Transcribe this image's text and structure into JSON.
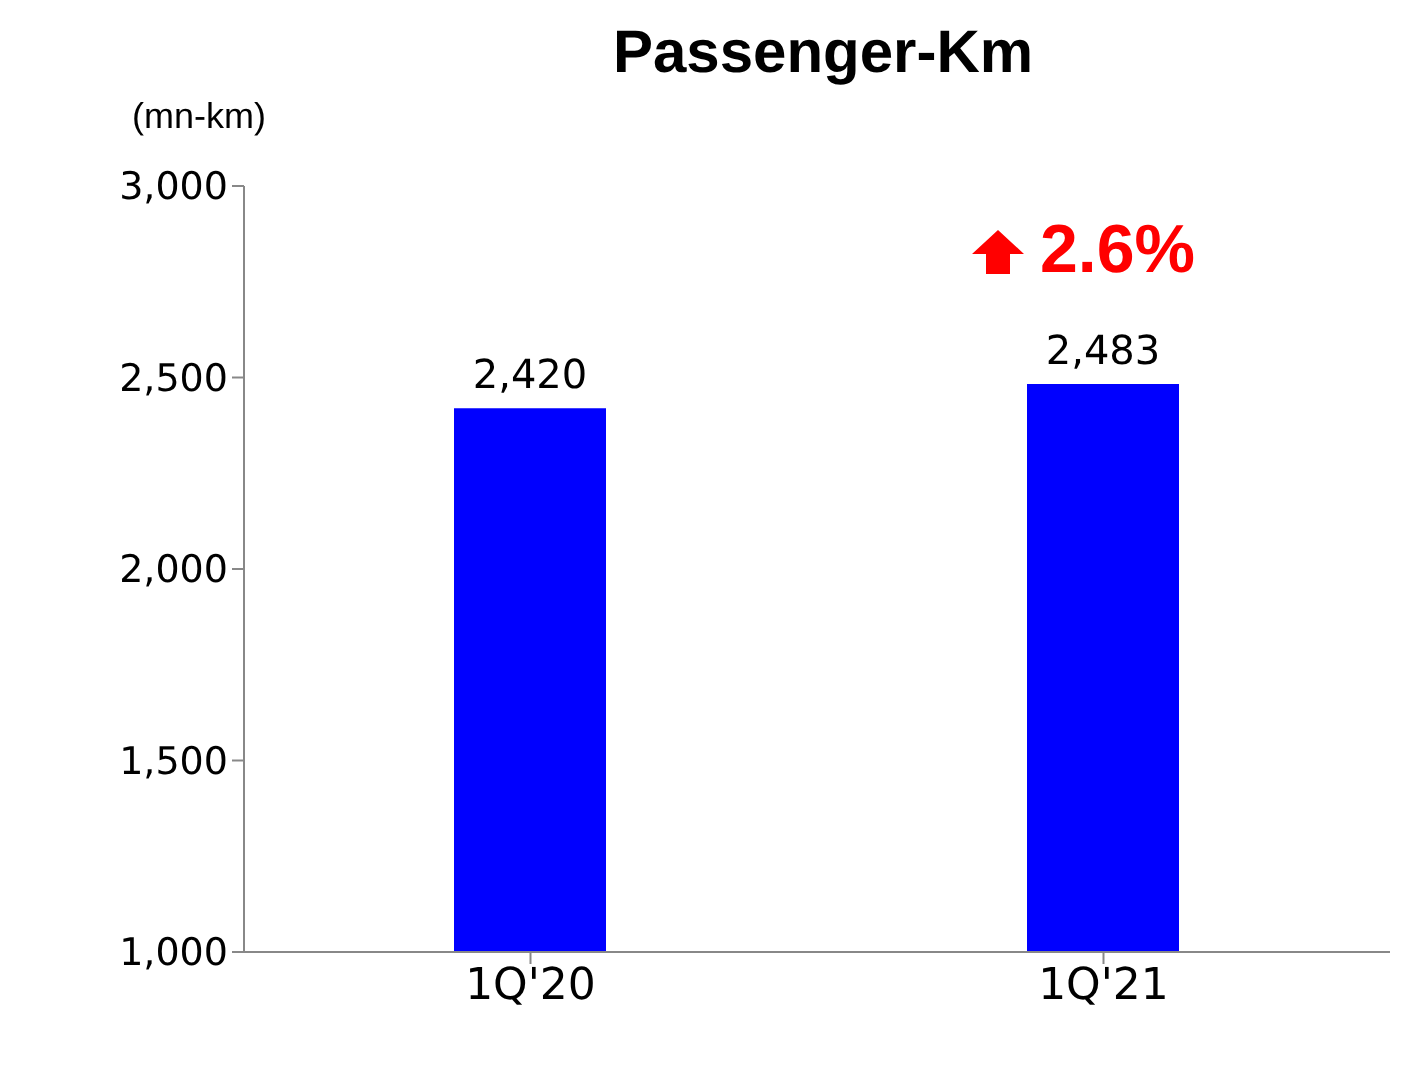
{
  "chart_data": {
    "type": "bar",
    "title": "Passenger-Km",
    "ylabel": "(mn-km)",
    "categories": [
      "1Q'20",
      "1Q'21"
    ],
    "values": [
      2420,
      2483
    ],
    "color": "#0000ff",
    "ylim": [
      1000,
      3000
    ],
    "yticks": [
      {
        "value": 1000,
        "label": "1,000"
      },
      {
        "value": 1500,
        "label": "1,500"
      },
      {
        "value": 2000,
        "label": "2,000"
      },
      {
        "value": 2500,
        "label": "2,500"
      },
      {
        "value": 3000,
        "label": "3,000"
      }
    ],
    "grid": false,
    "value_labels": [
      "2,420",
      "2,483"
    ],
    "annotations": [
      "2.6%"
    ]
  }
}
